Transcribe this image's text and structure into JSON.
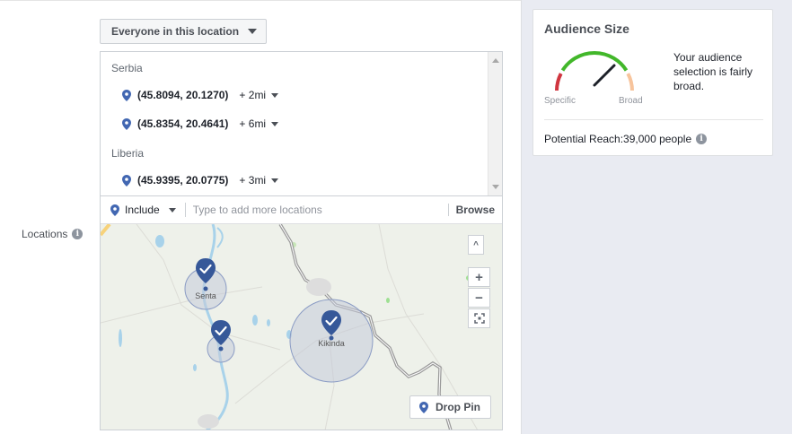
{
  "audience_dropdown": {
    "label": "Everyone in this location"
  },
  "locations": {
    "label": "Locations",
    "groups": [
      {
        "country": "Serbia",
        "items": [
          {
            "coords": "(45.8094, 20.1270)",
            "radius": "+ 2mi"
          },
          {
            "coords": "(45.8354, 20.4641)",
            "radius": "+ 6mi"
          }
        ]
      },
      {
        "country": "Liberia",
        "items": [
          {
            "coords": "(45.9395, 20.0775)",
            "radius": "+ 3mi"
          }
        ]
      }
    ],
    "include_label": "Include",
    "input_placeholder": "Type to add more locations",
    "browse_label": "Browse"
  },
  "map": {
    "place_labels": [
      "Senta",
      "Kikinda"
    ],
    "zoom_in": "+",
    "zoom_out": "−",
    "collapse": "^",
    "drop_pin_label": "Drop Pin"
  },
  "audience_size": {
    "title": "Audience Size",
    "specific_label": "Specific",
    "broad_label": "Broad",
    "description": "Your audience selection is fairly broad.",
    "reach_text": "Potential Reach:39,000 people"
  },
  "colors": {
    "pin": "#4267b2",
    "gauge_red": "#d0353f",
    "gauge_green": "#42b72a",
    "gauge_orange": "#f7c49c",
    "map_bg": "#eef1ea",
    "panel_bg": "#e9ebf2"
  },
  "icons": [
    "caret-down-icon",
    "info-icon",
    "location-pin-icon",
    "zoom-in-icon",
    "zoom-out-icon",
    "fullscreen-icon"
  ]
}
